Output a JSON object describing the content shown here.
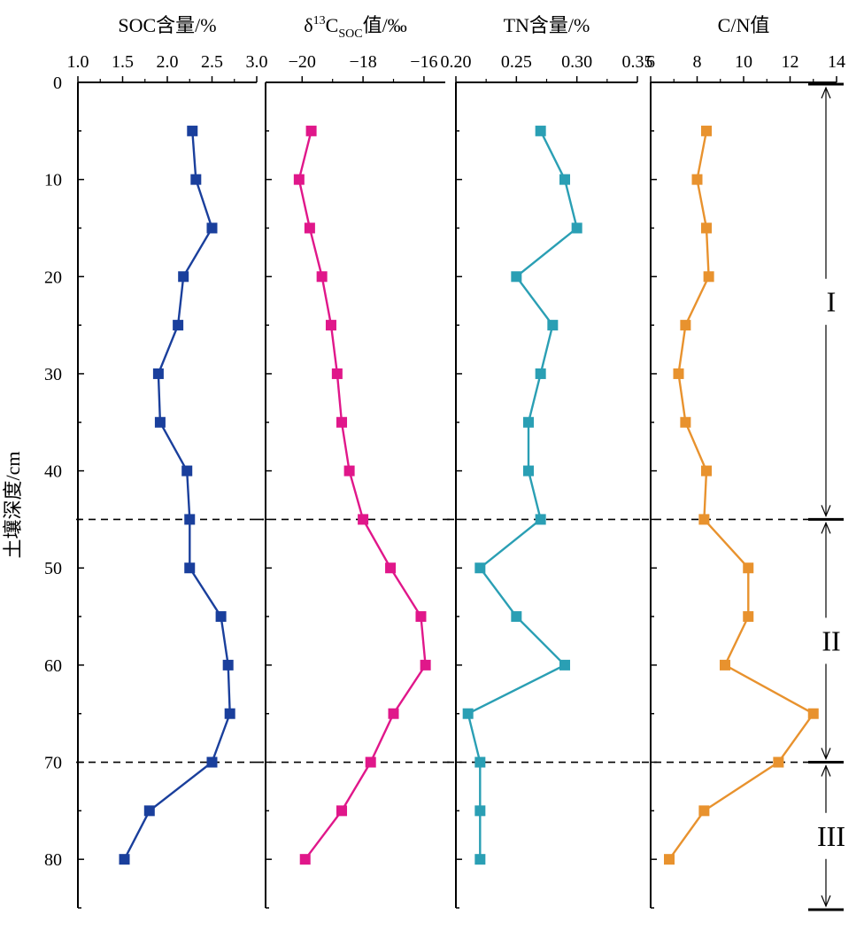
{
  "chart_data": {
    "type": "line",
    "orientation": "depth-profile",
    "ylabel": "土壤深度/cm",
    "y_axis": {
      "range": [
        0,
        85
      ],
      "inverted": true,
      "ticks": [
        0,
        10,
        20,
        30,
        40,
        50,
        60,
        70,
        80
      ],
      "tick_labels": [
        "0",
        "10",
        "20",
        "30",
        "40",
        "50",
        "60",
        "70",
        "80"
      ]
    },
    "depths": [
      5,
      10,
      15,
      20,
      25,
      30,
      35,
      40,
      45,
      50,
      55,
      60,
      65,
      70,
      75,
      80
    ],
    "zone_boundaries": [
      45,
      70
    ],
    "zones": [
      {
        "label": "I",
        "from": 0,
        "to": 45
      },
      {
        "label": "II",
        "from": 45,
        "to": 70
      },
      {
        "label": "III",
        "from": 70,
        "to": 85
      }
    ],
    "panels": [
      {
        "id": "soc",
        "title_main": "SOC含量/%",
        "title_prefix": "",
        "title_sup": "",
        "title_mid": "",
        "title_sub": "",
        "title_suffix": "",
        "xlim": [
          1.0,
          3.0
        ],
        "ticks": [
          1.0,
          1.5,
          2.0,
          2.5,
          3.0
        ],
        "tick_labels": [
          "1.0",
          "1.5",
          "2.0",
          "2.5",
          "3.0"
        ],
        "color": "#1a3f9c",
        "values": [
          2.28,
          2.32,
          2.5,
          2.18,
          2.12,
          1.9,
          1.92,
          2.22,
          2.25,
          2.25,
          2.6,
          2.68,
          2.7,
          2.5,
          1.8,
          1.52
        ]
      },
      {
        "id": "d13c",
        "title_main": "",
        "title_prefix": "δ",
        "title_sup": "13",
        "title_mid": "C",
        "title_sub": "SOC",
        "title_suffix": "值/‰",
        "xlim": [
          -21.2,
          -15.3
        ],
        "ticks": [
          -20,
          -18,
          -16
        ],
        "tick_labels": [
          "−20",
          "−18",
          "−16"
        ],
        "color": "#e0178a",
        "values": [
          -19.7,
          -20.1,
          -19.75,
          -19.35,
          -19.05,
          -18.85,
          -18.7,
          -18.45,
          -18.0,
          -17.1,
          -16.1,
          -15.95,
          -17.0,
          -17.75,
          -18.7,
          -19.9
        ]
      },
      {
        "id": "tn",
        "title_main": "TN含量/%",
        "title_prefix": "",
        "title_sup": "",
        "title_mid": "",
        "title_sub": "",
        "title_suffix": "",
        "xlim": [
          0.2,
          0.35
        ],
        "ticks": [
          0.2,
          0.25,
          0.3,
          0.35
        ],
        "tick_labels": [
          "0.20",
          "0.25",
          "0.30",
          "0.35"
        ],
        "color": "#2a9fb4",
        "values": [
          0.27,
          0.29,
          0.3,
          0.25,
          0.28,
          0.27,
          0.26,
          0.26,
          0.27,
          0.22,
          0.25,
          0.29,
          0.21,
          0.22,
          0.22,
          0.22
        ]
      },
      {
        "id": "cn",
        "title_main": "C/N值",
        "title_prefix": "",
        "title_sup": "",
        "title_mid": "",
        "title_sub": "",
        "title_suffix": "",
        "xlim": [
          6,
          14
        ],
        "ticks": [
          6,
          8,
          10,
          12,
          14
        ],
        "tick_labels": [
          "6",
          "8",
          "10",
          "12",
          "14"
        ],
        "color": "#e8922e",
        "values": [
          8.4,
          8.0,
          8.4,
          8.5,
          7.5,
          7.2,
          7.5,
          8.4,
          8.3,
          10.2,
          10.2,
          9.2,
          13.0,
          11.5,
          8.3,
          6.8
        ]
      }
    ]
  }
}
